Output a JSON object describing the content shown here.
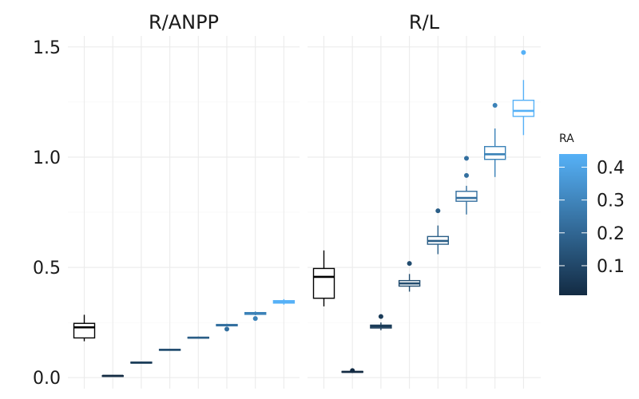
{
  "chart_data": {
    "type": "boxplot",
    "facets": [
      {
        "label": "R/ANPP",
        "boxes": [
          {
            "ra": 0.0,
            "color": "#000000",
            "min": 0.165,
            "q1": 0.18,
            "median": 0.228,
            "q3": 0.246,
            "max": 0.285,
            "outliers": []
          },
          {
            "ra": 0.05,
            "color": "#132B43",
            "min": 0.006,
            "q1": 0.007,
            "median": 0.008,
            "q3": 0.009,
            "max": 0.011,
            "outliers": []
          },
          {
            "ra": 0.1,
            "color": "#1B3C59",
            "min": 0.064,
            "q1": 0.066,
            "median": 0.068,
            "q3": 0.07,
            "max": 0.072,
            "outliers": []
          },
          {
            "ra": 0.15,
            "color": "#224C6F",
            "min": 0.122,
            "q1": 0.124,
            "median": 0.126,
            "q3": 0.128,
            "max": 0.13,
            "outliers": []
          },
          {
            "ra": 0.2,
            "color": "#2A5E87",
            "min": 0.177,
            "q1": 0.179,
            "median": 0.181,
            "q3": 0.183,
            "max": 0.186,
            "outliers": []
          },
          {
            "ra": 0.25,
            "color": "#336F9F",
            "min": 0.233,
            "q1": 0.235,
            "median": 0.238,
            "q3": 0.241,
            "max": 0.244,
            "outliers": [
              0.22
            ]
          },
          {
            "ra": 0.3,
            "color": "#3B82B8",
            "min": 0.283,
            "q1": 0.287,
            "median": 0.291,
            "q3": 0.295,
            "max": 0.3,
            "outliers": [
              0.268
            ]
          },
          {
            "ra": 0.4,
            "color": "#56B1F7",
            "min": 0.331,
            "q1": 0.338,
            "median": 0.343,
            "q3": 0.349,
            "max": 0.356,
            "outliers": []
          }
        ]
      },
      {
        "label": "R/L",
        "boxes": [
          {
            "ra": 0.0,
            "color": "#000000",
            "min": 0.323,
            "q1": 0.36,
            "median": 0.457,
            "q3": 0.495,
            "max": 0.577,
            "outliers": []
          },
          {
            "ra": 0.05,
            "color": "#132B43",
            "min": 0.022,
            "q1": 0.024,
            "median": 0.026,
            "q3": 0.028,
            "max": 0.03,
            "outliers": [
              0.032
            ]
          },
          {
            "ra": 0.1,
            "color": "#1B3C59",
            "min": 0.215,
            "q1": 0.225,
            "median": 0.232,
            "q3": 0.238,
            "max": 0.25,
            "outliers": [
              0.277
            ]
          },
          {
            "ra": 0.15,
            "color": "#224C6F",
            "min": 0.39,
            "q1": 0.415,
            "median": 0.427,
            "q3": 0.44,
            "max": 0.47,
            "outliers": [
              0.518
            ]
          },
          {
            "ra": 0.2,
            "color": "#2A5E87",
            "min": 0.56,
            "q1": 0.605,
            "median": 0.62,
            "q3": 0.64,
            "max": 0.69,
            "outliers": [
              0.757
            ]
          },
          {
            "ra": 0.25,
            "color": "#336F9F",
            "min": 0.74,
            "q1": 0.8,
            "median": 0.815,
            "q3": 0.845,
            "max": 0.87,
            "outliers": [
              0.917,
              0.995
            ]
          },
          {
            "ra": 0.3,
            "color": "#3B82B8",
            "min": 0.91,
            "q1": 0.99,
            "median": 1.013,
            "q3": 1.048,
            "max": 1.13,
            "outliers": [
              1.235
            ]
          },
          {
            "ra": 0.4,
            "color": "#56B1F7",
            "min": 1.1,
            "q1": 1.185,
            "median": 1.21,
            "q3": 1.258,
            "max": 1.35,
            "outliers": [
              1.475
            ]
          }
        ]
      }
    ],
    "y_axis": {
      "range": [
        -0.05,
        1.55
      ],
      "ticks": [
        0.0,
        0.5,
        1.0,
        1.5
      ],
      "tick_labels": [
        "0.0",
        "0.5",
        "1.0",
        "1.5"
      ]
    },
    "x_axis": {
      "tick_labels": []
    },
    "legend": {
      "title": "RA",
      "type": "colorbar",
      "position": "right",
      "range": [
        0.01,
        0.44
      ],
      "ticks": [
        0.1,
        0.2,
        0.3,
        0.4
      ],
      "tick_labels": [
        "0.1",
        "0.2",
        "0.3",
        "0.4"
      ],
      "low_color": "#132B43",
      "high_color": "#56B1F7"
    },
    "grid": true
  }
}
